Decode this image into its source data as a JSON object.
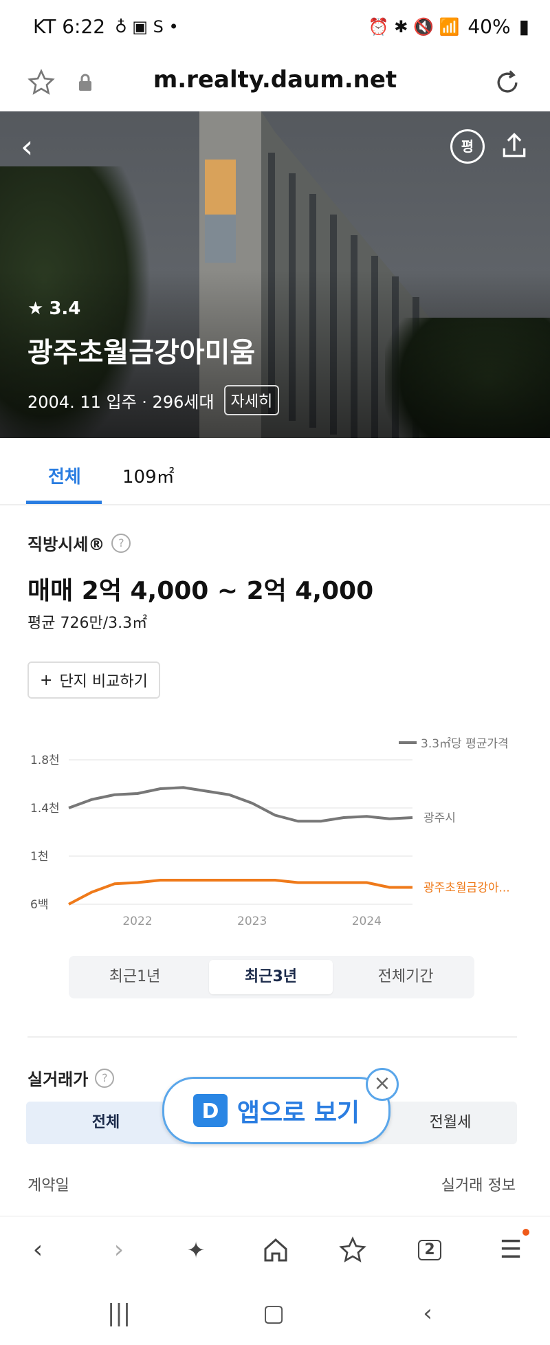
{
  "status_bar": {
    "carrier_time": "KT 6:22",
    "battery": "40%"
  },
  "browser": {
    "url": "m.realty.daum.net"
  },
  "hero": {
    "round_icon_label": "평",
    "rating": "3.4",
    "apartment_name": "광주초월금강아미움",
    "meta": "2004. 11 입주 · 296세대",
    "detail_button": "자세히"
  },
  "tabs": [
    {
      "label": "전체",
      "active": true
    },
    {
      "label": "109㎡",
      "active": false
    }
  ],
  "price_section": {
    "title": "직방시세®",
    "price": "매매 2억 4,000 ~ 2억 4,000",
    "average": "평균 726만/3.3㎡",
    "compare_button": "단지 비교하기"
  },
  "chart_data": {
    "type": "line",
    "legend": "3.3㎡당 평균가격",
    "y_ticks": [
      "1.8천",
      "1.4천",
      "1천",
      "6백"
    ],
    "x_ticks": [
      "2022",
      "2023",
      "2024"
    ],
    "series": [
      {
        "name": "광주시",
        "color": "#777777",
        "x": [
          2021.4,
          2021.6,
          2021.8,
          2022.0,
          2022.2,
          2022.4,
          2022.6,
          2022.8,
          2023.0,
          2023.2,
          2023.4,
          2023.6,
          2023.8,
          2024.0,
          2024.2,
          2024.4
        ],
        "values": [
          1400,
          1470,
          1510,
          1520,
          1560,
          1570,
          1540,
          1510,
          1440,
          1340,
          1290,
          1290,
          1320,
          1330,
          1310,
          1320
        ]
      },
      {
        "name": "광주초월금강아...",
        "color": "#ef7a1a",
        "x": [
          2021.4,
          2021.6,
          2021.8,
          2022.0,
          2022.2,
          2022.4,
          2022.6,
          2022.8,
          2023.0,
          2023.2,
          2023.4,
          2023.6,
          2023.8,
          2024.0,
          2024.2,
          2024.4
        ],
        "values": [
          600,
          700,
          770,
          780,
          800,
          800,
          800,
          800,
          800,
          800,
          780,
          780,
          780,
          780,
          740,
          740
        ]
      }
    ],
    "xlim": [
      2021.4,
      2024.4
    ],
    "ylim": [
      600,
      1800
    ]
  },
  "period_toggle": [
    {
      "label": "최근1년",
      "active": false
    },
    {
      "label": "최근3년",
      "active": true
    },
    {
      "label": "전체기간",
      "active": false
    }
  ],
  "trade_section": {
    "title": "실거래가",
    "tabs": [
      {
        "label": "전체",
        "active": true
      },
      {
        "label": "전월세",
        "active": false
      }
    ],
    "col_left": "계약일",
    "col_right": "실거래 정보"
  },
  "app_banner": {
    "logo": "D",
    "text": "앱으로 보기"
  },
  "accent_color": "#2a7de1"
}
